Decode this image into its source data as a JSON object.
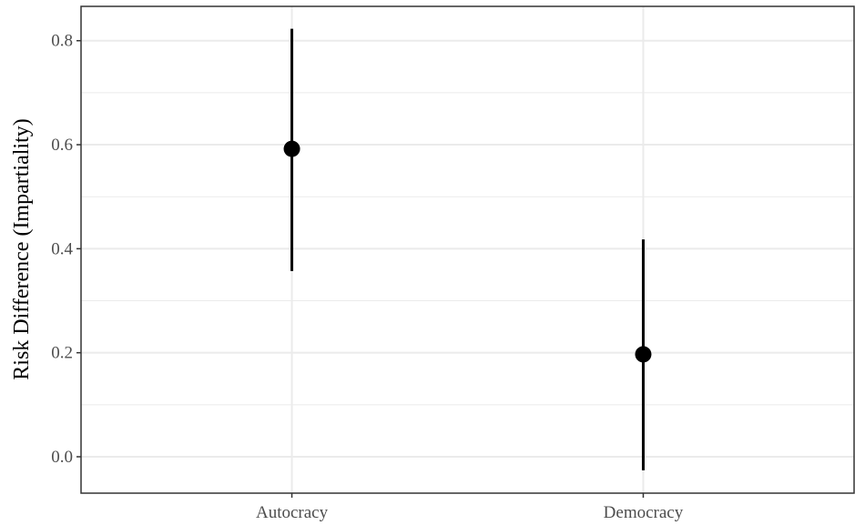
{
  "chart_data": {
    "type": "scatter",
    "title": "",
    "xlabel": "",
    "ylabel": "Risk Difference (Impartiality)",
    "categories": [
      "Autocracy",
      "Democracy"
    ],
    "values": [
      0.592,
      0.197
    ],
    "ci_lower": [
      0.357,
      -0.026
    ],
    "ci_upper": [
      0.823,
      0.418
    ],
    "ylim": [
      -0.07,
      0.866
    ],
    "yticks": [
      0.0,
      0.2,
      0.4,
      0.6,
      0.8
    ],
    "ytick_labels": [
      "0.0",
      "0.2",
      "0.4",
      "0.6",
      "0.8"
    ],
    "grid": true,
    "legend": "none",
    "colors": {
      "points": "#000000",
      "grid": "#ebebeb",
      "panel_border": "#333333"
    }
  }
}
